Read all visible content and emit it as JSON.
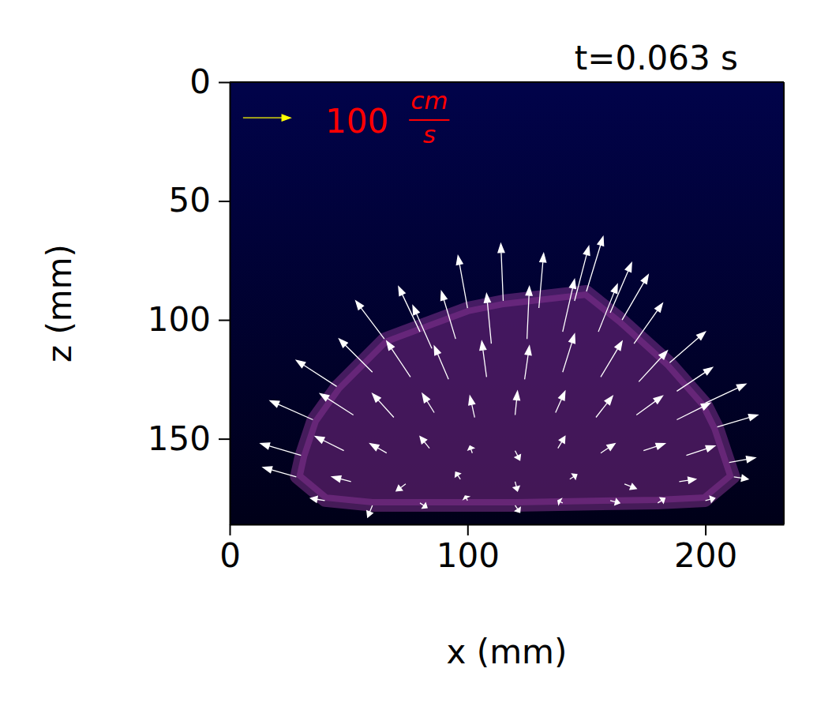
{
  "chart_data": {
    "type": "quiver",
    "title": "t=0.063 s",
    "x_label": "x (mm)",
    "y_label": "z (mm)",
    "xlim": [
      0,
      233
    ],
    "ylim": [
      186,
      0
    ],
    "xticks": [
      0,
      100,
      200
    ],
    "yticks": [
      0,
      50,
      100,
      150
    ],
    "color": "#ffffff",
    "key": {
      "value": 100,
      "unit_numerator": "cm",
      "unit_denominator": "s",
      "color": "#ffff00",
      "label_color": "#ff0000"
    },
    "x": [
      100,
      115,
      130,
      145,
      160,
      150,
      165,
      85,
      65,
      80,
      95,
      110,
      125,
      140,
      155,
      170,
      185,
      45,
      60,
      76,
      92,
      108,
      124,
      140,
      156,
      172,
      188,
      200,
      35,
      52,
      69,
      86,
      103,
      120,
      137,
      154,
      171,
      188,
      205,
      30,
      48,
      66,
      84,
      102,
      120,
      138,
      156,
      174,
      192,
      210,
      28,
      51,
      74,
      97,
      120,
      143,
      166,
      189,
      212,
      40,
      60,
      80,
      100,
      120,
      140,
      160,
      180,
      200
    ],
    "z": [
      95,
      92,
      95,
      92,
      97,
      88,
      100,
      112,
      108,
      105,
      108,
      110,
      108,
      105,
      105,
      110,
      118,
      128,
      122,
      124,
      125,
      124,
      125,
      122,
      124,
      126,
      130,
      135,
      142,
      140,
      141,
      139,
      141,
      140,
      139,
      141,
      140,
      142,
      145,
      157,
      155,
      156,
      154,
      156,
      155,
      154,
      156,
      155,
      157,
      160,
      166,
      168,
      169,
      167,
      168,
      167,
      169,
      168,
      166,
      176,
      178,
      177,
      176,
      178,
      177,
      176,
      177,
      176
    ],
    "u": [
      -20,
      -5,
      10,
      30,
      45,
      35,
      55,
      -40,
      -60,
      -45,
      -30,
      -10,
      5,
      25,
      40,
      60,
      75,
      -85,
      -70,
      -50,
      -30,
      -10,
      10,
      25,
      45,
      60,
      75,
      85,
      -90,
      -70,
      -45,
      -25,
      -10,
      5,
      20,
      35,
      55,
      70,
      85,
      -85,
      -60,
      -35,
      -20,
      -5,
      10,
      15,
      30,
      45,
      60,
      55,
      -70,
      -40,
      -20,
      -10,
      5,
      15,
      25,
      35,
      30,
      -30,
      -10,
      15,
      -5,
      10,
      -10,
      20,
      15,
      20
    ],
    "w": [
      110,
      120,
      115,
      115,
      105,
      115,
      95,
      90,
      80,
      95,
      100,
      105,
      110,
      110,
      100,
      85,
      65,
      55,
      70,
      75,
      70,
      75,
      70,
      80,
      75,
      65,
      50,
      40,
      40,
      45,
      50,
      40,
      45,
      50,
      45,
      45,
      40,
      35,
      25,
      25,
      30,
      20,
      25,
      15,
      -20,
      25,
      20,
      15,
      20,
      10,
      20,
      10,
      -15,
      15,
      -20,
      10,
      -10,
      5,
      -5,
      5,
      -25,
      -10,
      10,
      -15,
      5,
      -5,
      10,
      5
    ]
  }
}
